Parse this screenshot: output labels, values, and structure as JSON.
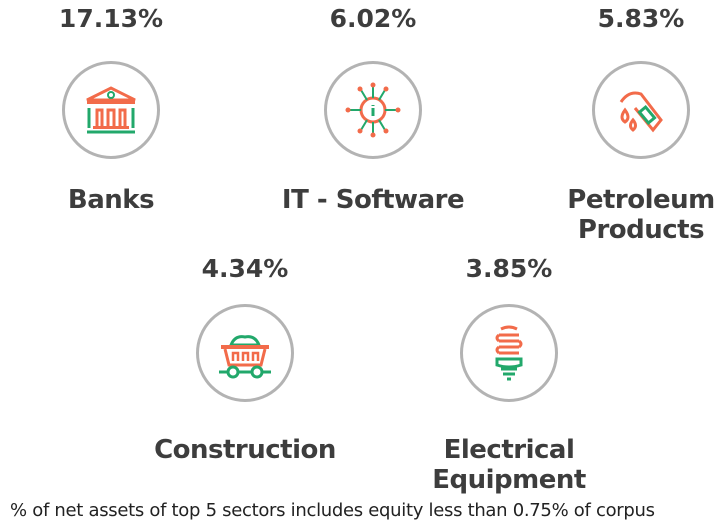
{
  "colors": {
    "accent_orange": "#f26b4a",
    "accent_green": "#22a86b",
    "circle": "#b3b3b3"
  },
  "sectors": [
    {
      "name": "Banks",
      "percent": "17.13%",
      "icon": "bank-icon"
    },
    {
      "name": "IT - Software",
      "percent": "6.02%",
      "icon": "circuit-chip-icon"
    },
    {
      "name": "Petroleum Products",
      "percent": "5.83%",
      "icon": "fuel-nozzle-icon"
    },
    {
      "name": "Construction",
      "percent": "4.34%",
      "icon": "mine-cart-icon"
    },
    {
      "name": "Electrical Equipment",
      "percent": "3.85%",
      "icon": "cfl-bulb-icon"
    }
  ],
  "footnote": "% of net assets of top 5 sectors includes equity less than 0.75% of corpus"
}
